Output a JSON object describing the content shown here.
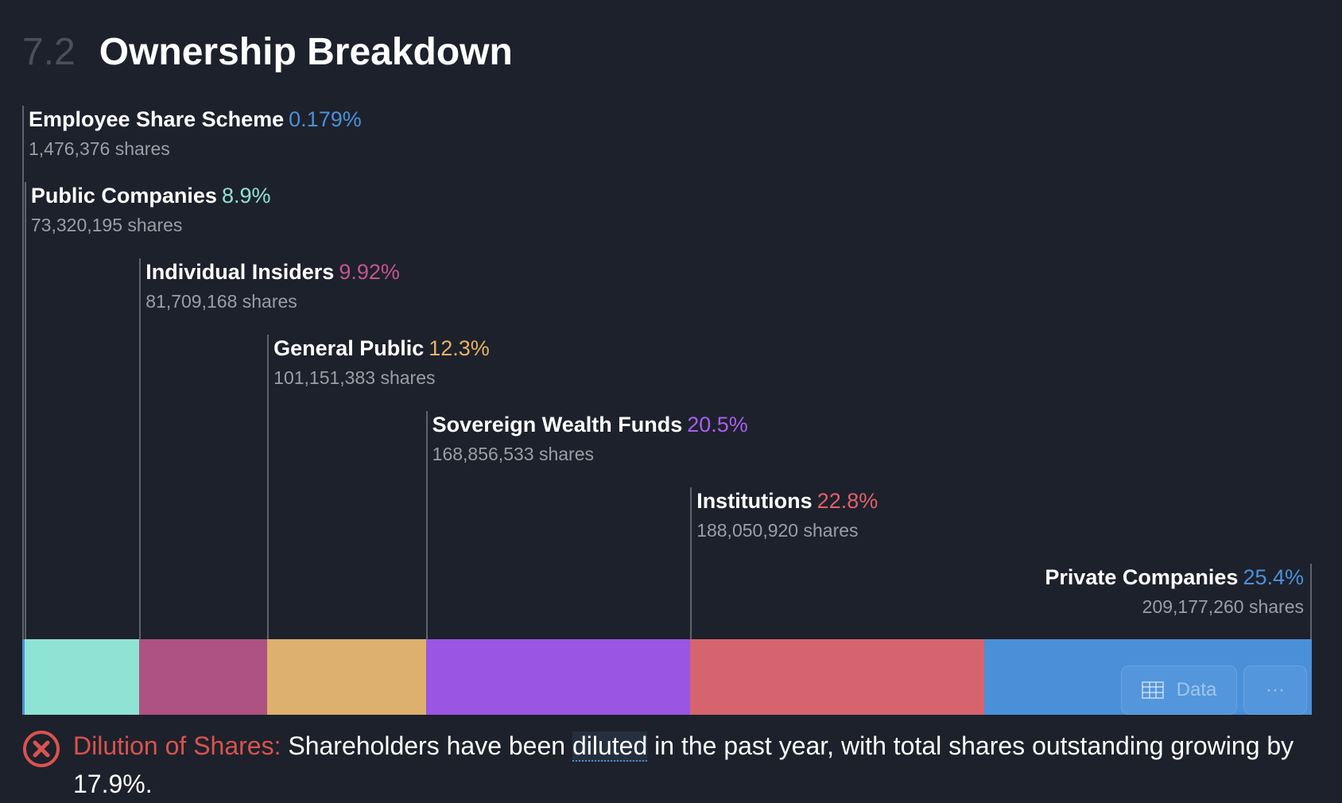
{
  "section_number": "7.2",
  "title": "Ownership Breakdown",
  "chart_data": {
    "type": "bar",
    "orientation": "stacked-horizontal",
    "title": "Ownership Breakdown",
    "categories": [
      "Employee Share Scheme",
      "Public Companies",
      "Individual Insiders",
      "General Public",
      "Sovereign Wealth Funds",
      "Institutions",
      "Private Companies"
    ],
    "percent_labels": [
      "0.179%",
      "8.9%",
      "9.92%",
      "12.3%",
      "20.5%",
      "22.8%",
      "25.4%"
    ],
    "values": [
      0.179,
      8.9,
      9.92,
      12.3,
      20.5,
      22.8,
      25.4
    ],
    "shares": [
      "1,476,376 shares",
      "73,320,195 shares",
      "81,709,168 shares",
      "101,151,383 shares",
      "168,856,533 shares",
      "188,050,920 shares",
      "209,177,260 shares"
    ],
    "colors": [
      "#4a90d9",
      "#8fe3d4",
      "#ad5282",
      "#ddb06e",
      "#9a55e2",
      "#d6646f",
      "#4a90d9"
    ],
    "label_colors": [
      "#4a90d9",
      "#8fe3d4",
      "#c2558f",
      "#e5b367",
      "#a85ff0",
      "#e0606c",
      "#4a90d9"
    ]
  },
  "buttons": {
    "data": "Data",
    "more": "···"
  },
  "warning": {
    "heading": "Dilution of Shares:",
    "before": "Shareholders have been",
    "highlight": "diluted",
    "after": "in the past year, with total shares outstanding growing by 17.9%."
  }
}
